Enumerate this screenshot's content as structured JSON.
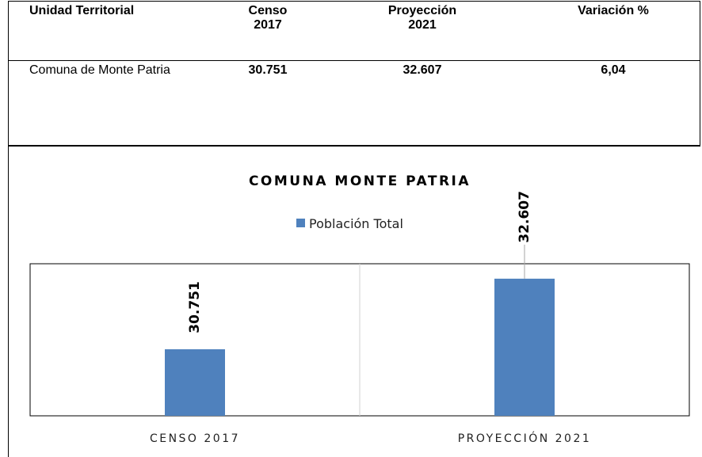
{
  "table": {
    "header": [
      "Unidad Territorial",
      "Censo 2017",
      "Proyección 2021",
      "Variación %"
    ],
    "rows": [
      [
        "Comuna de Monte Patria",
        "30.751",
        "32.607",
        "6,04"
      ]
    ]
  },
  "chart_data": {
    "type": "bar",
    "title": "COMUNA MONTE PATRIA",
    "categories": [
      "CENSO 2017",
      "PROYECCIÓN 2021"
    ],
    "series": [
      {
        "name": "Población Total",
        "color": "#4f81bd",
        "values": [
          30751,
          32607
        ],
        "value_labels": [
          "30.751",
          "32.607"
        ]
      }
    ],
    "ylim": [
      29000,
      33000
    ],
    "legend": "top"
  }
}
